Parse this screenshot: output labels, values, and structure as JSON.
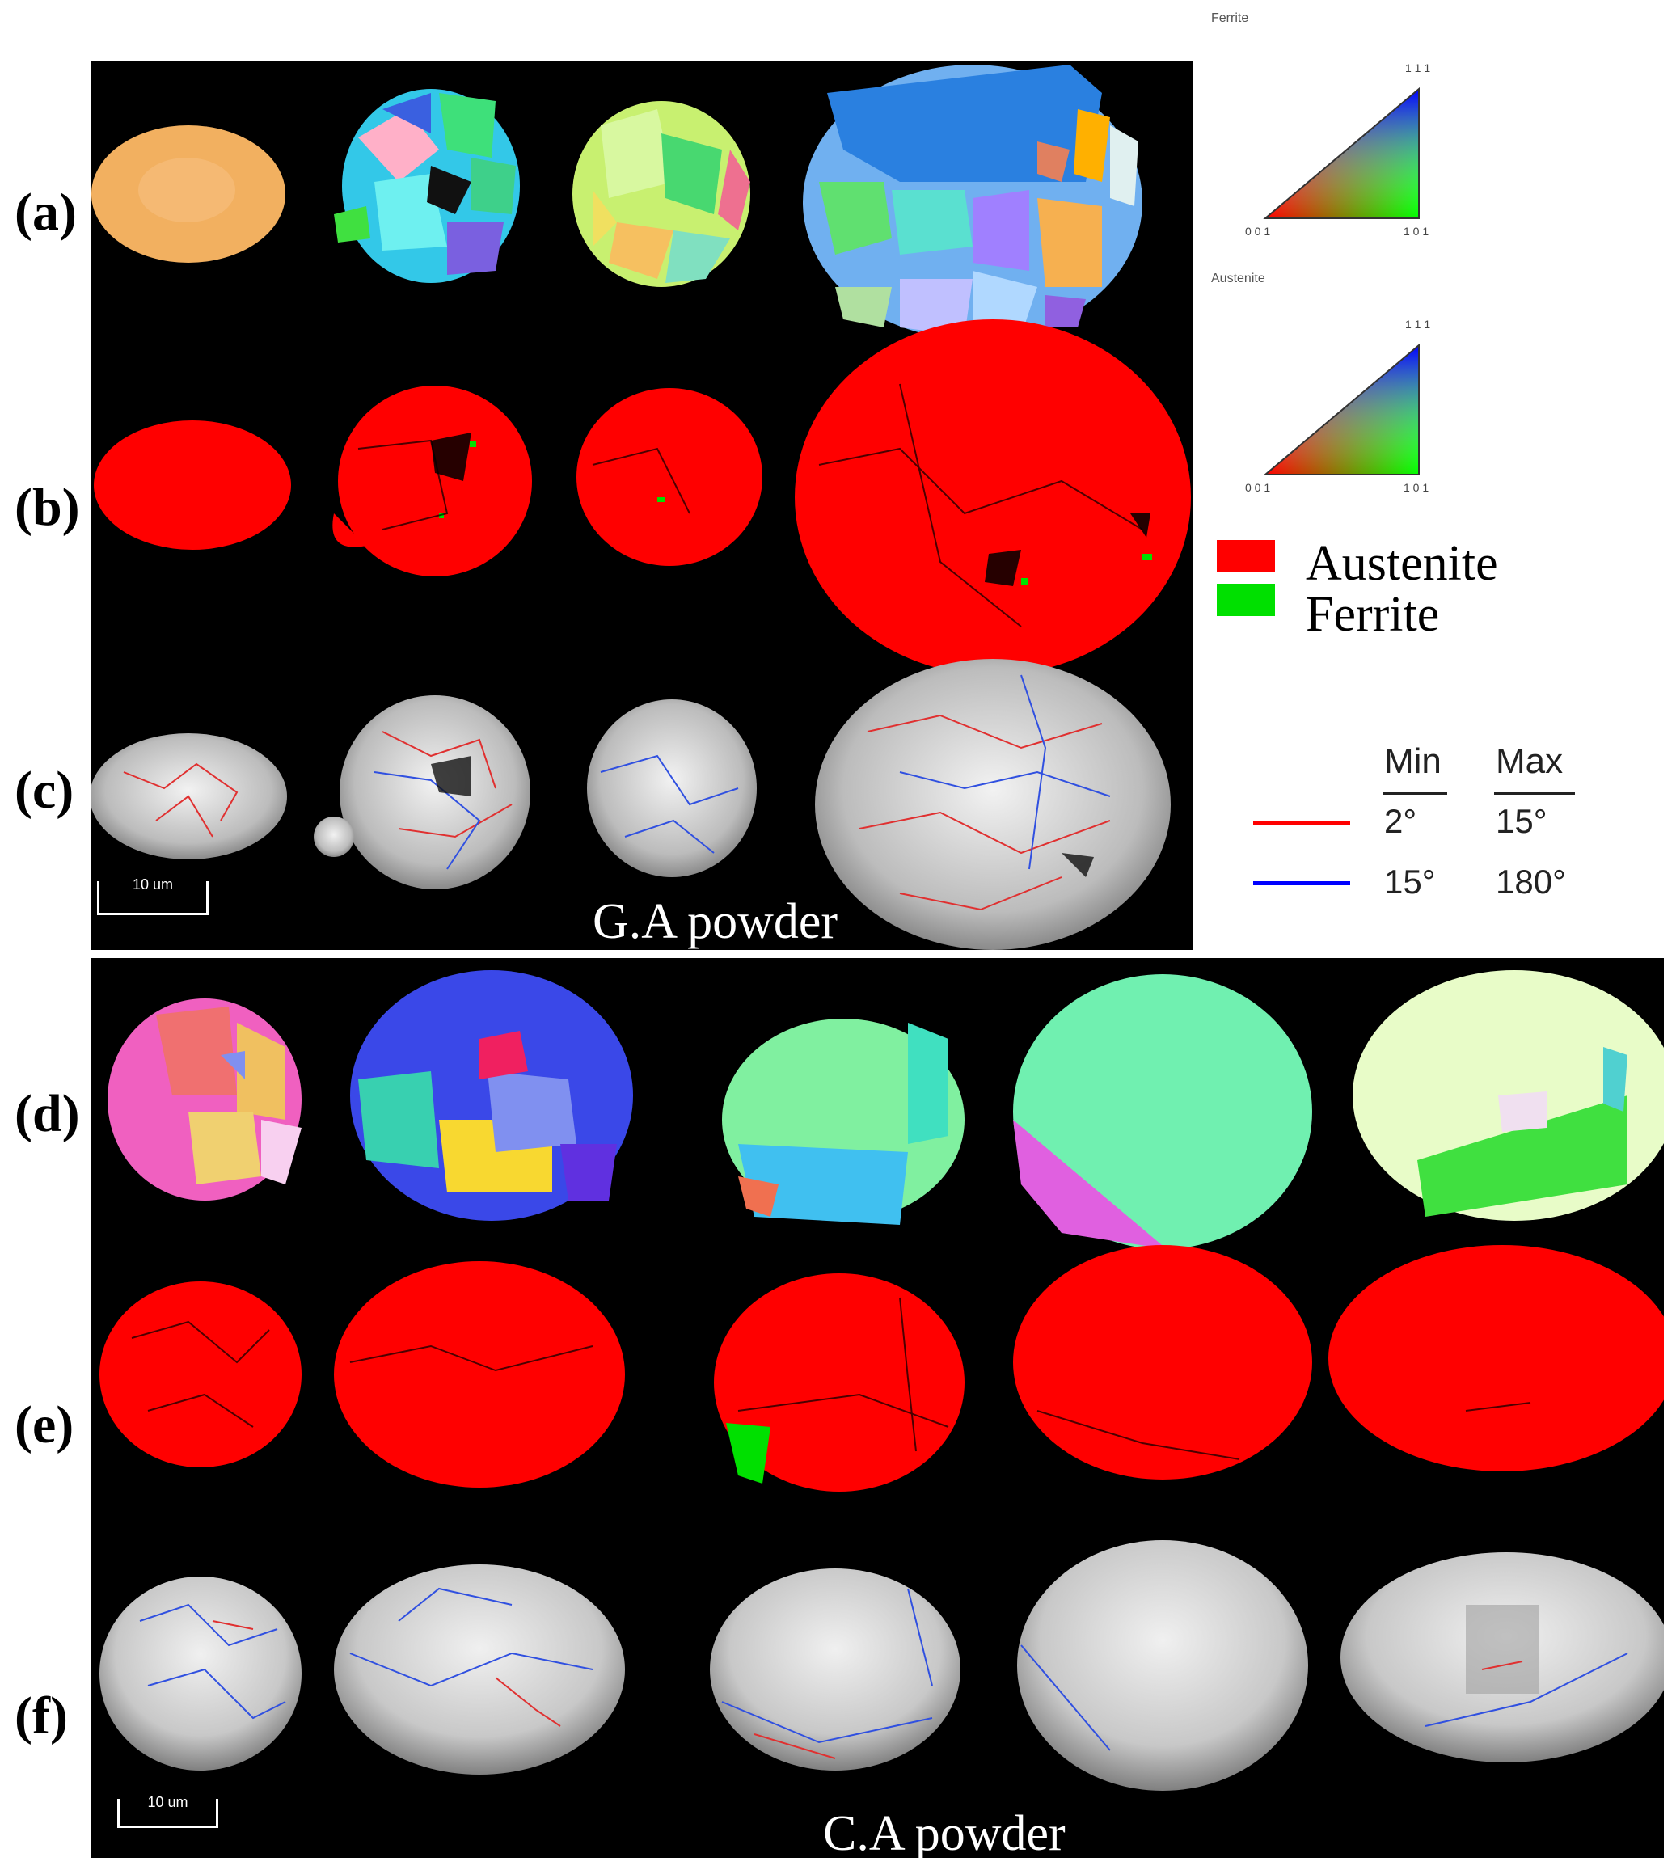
{
  "rows": {
    "a": "(a)",
    "b": "(b)",
    "c": "(c)",
    "d": "(d)",
    "e": "(e)",
    "f": "(f)"
  },
  "panels": {
    "ga_caption": "G.A powder",
    "ca_caption": "C.A powder",
    "scale_bar_label": "10 um"
  },
  "ipf_keys": [
    {
      "title": "Ferrite",
      "corner_top": "1 1 1",
      "corner_left": "0 0 1",
      "corner_right": "1 0 1"
    },
    {
      "title": "Austenite",
      "corner_top": "1 1 1",
      "corner_left": "0 0 1",
      "corner_right": "1 0 1"
    }
  ],
  "phase_legend": {
    "items": [
      {
        "label": "Austenite",
        "color": "#ff0000"
      },
      {
        "label": "Ferrite",
        "color": "#00e000"
      }
    ]
  },
  "misorientation_legend": {
    "min_header": "Min",
    "max_header": "Max",
    "rows": [
      {
        "color": "#ff0000",
        "min": "2°",
        "max": "15°"
      },
      {
        "color": "#0000ff",
        "min": "15°",
        "max": "180°"
      }
    ]
  }
}
